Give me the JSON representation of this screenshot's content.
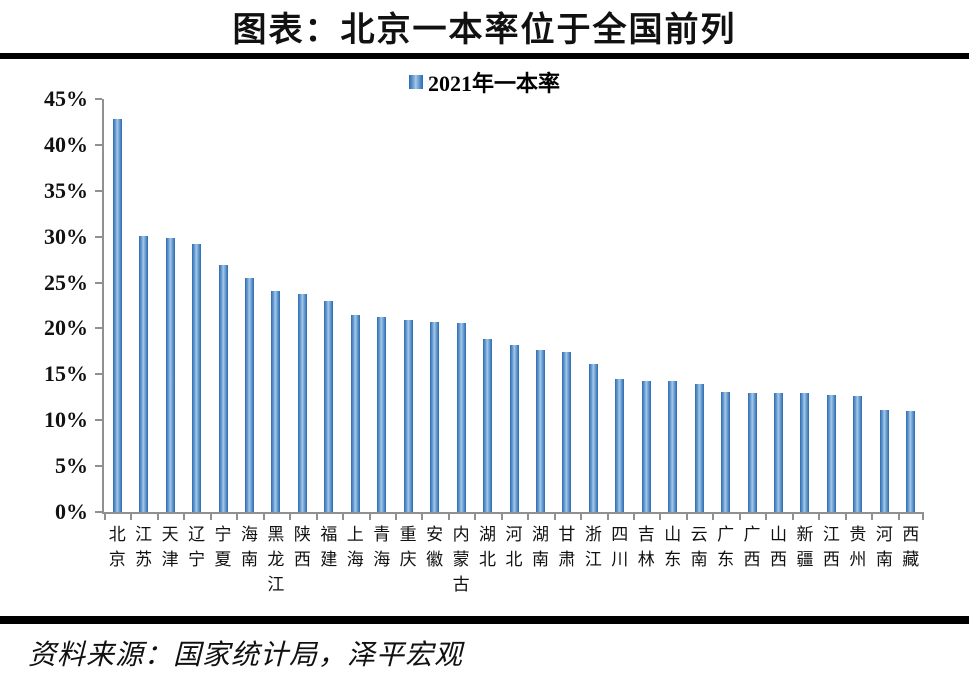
{
  "page": {
    "title": "图表：北京一本率位于全国前列",
    "source": "资料来源：国家统计局，泽平宏观"
  },
  "legend": {
    "label": "2021年一本率",
    "swatch_color": "#4f86c0"
  },
  "colors": {
    "bar_edge": "#2c69af",
    "bar_center": "#a5c8e9",
    "axis": "#909090",
    "rule": "#000000",
    "background": "#ffffff"
  },
  "chart_data": {
    "type": "bar",
    "title": "2021年一本率",
    "xlabel": "",
    "ylabel": "",
    "unit": "%",
    "ylim": [
      0,
      45
    ],
    "ytick_step": 5,
    "ytick_labels": [
      "0%",
      "5%",
      "10%",
      "15%",
      "20%",
      "25%",
      "30%",
      "35%",
      "40%",
      "45%"
    ],
    "grid": false,
    "legend_position": "top-center",
    "categories": [
      "北京",
      "江苏",
      "天津",
      "辽宁",
      "宁夏",
      "海南",
      "黑龙江",
      "陕西",
      "福建",
      "上海",
      "青海",
      "重庆",
      "安徽",
      "内蒙古",
      "湖北",
      "河北",
      "湖南",
      "甘肃",
      "浙江",
      "四川",
      "吉林",
      "山东",
      "云南",
      "广东",
      "广西",
      "山西",
      "新疆",
      "江西",
      "贵州",
      "河南",
      "西藏"
    ],
    "values": [
      42.8,
      30.1,
      29.9,
      29.2,
      26.9,
      25.5,
      24.1,
      23.8,
      23.0,
      21.5,
      21.2,
      20.9,
      20.7,
      20.6,
      18.9,
      18.2,
      17.6,
      17.4,
      16.1,
      14.5,
      14.3,
      14.3,
      13.9,
      13.1,
      13.0,
      13.0,
      13.0,
      12.8,
      12.6,
      11.1,
      11.0
    ]
  }
}
